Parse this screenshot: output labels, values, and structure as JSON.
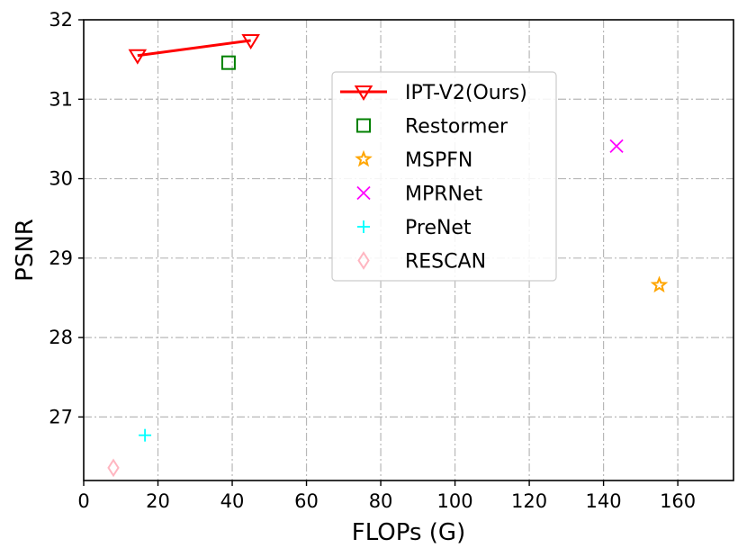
{
  "chart_data": {
    "type": "scatter",
    "title": "",
    "xlabel": "FLOPs (G)",
    "ylabel": "PSNR",
    "xlim": [
      0,
      175
    ],
    "ylim": [
      26.2,
      32
    ],
    "xticks": [
      0,
      20,
      40,
      60,
      80,
      100,
      120,
      140,
      160
    ],
    "yticks": [
      27,
      28,
      29,
      30,
      31,
      32
    ],
    "grid": true,
    "legend_position": "upper-center",
    "series": [
      {
        "name": "IPT-V2(Ours)",
        "marker": "triangle-down",
        "line": true,
        "color": "#ff0000",
        "points": [
          {
            "x": 14.5,
            "y": 31.55
          },
          {
            "x": 45,
            "y": 31.74
          }
        ]
      },
      {
        "name": "Restormer",
        "marker": "square",
        "line": false,
        "color": "#008000",
        "points": [
          {
            "x": 39,
            "y": 31.46
          }
        ]
      },
      {
        "name": "MSPFN",
        "marker": "star",
        "line": false,
        "color": "#ffa500",
        "points": [
          {
            "x": 155,
            "y": 28.66
          }
        ]
      },
      {
        "name": "MPRNet",
        "marker": "x",
        "line": false,
        "color": "#ff00ff",
        "points": [
          {
            "x": 143.5,
            "y": 30.41
          }
        ]
      },
      {
        "name": "PreNet",
        "marker": "plus",
        "line": false,
        "color": "#00ffff",
        "points": [
          {
            "x": 16.5,
            "y": 26.77
          }
        ]
      },
      {
        "name": "RESCAN",
        "marker": "diamond",
        "line": false,
        "color": "#ffb6c1",
        "points": [
          {
            "x": 8,
            "y": 26.36
          }
        ]
      }
    ]
  }
}
